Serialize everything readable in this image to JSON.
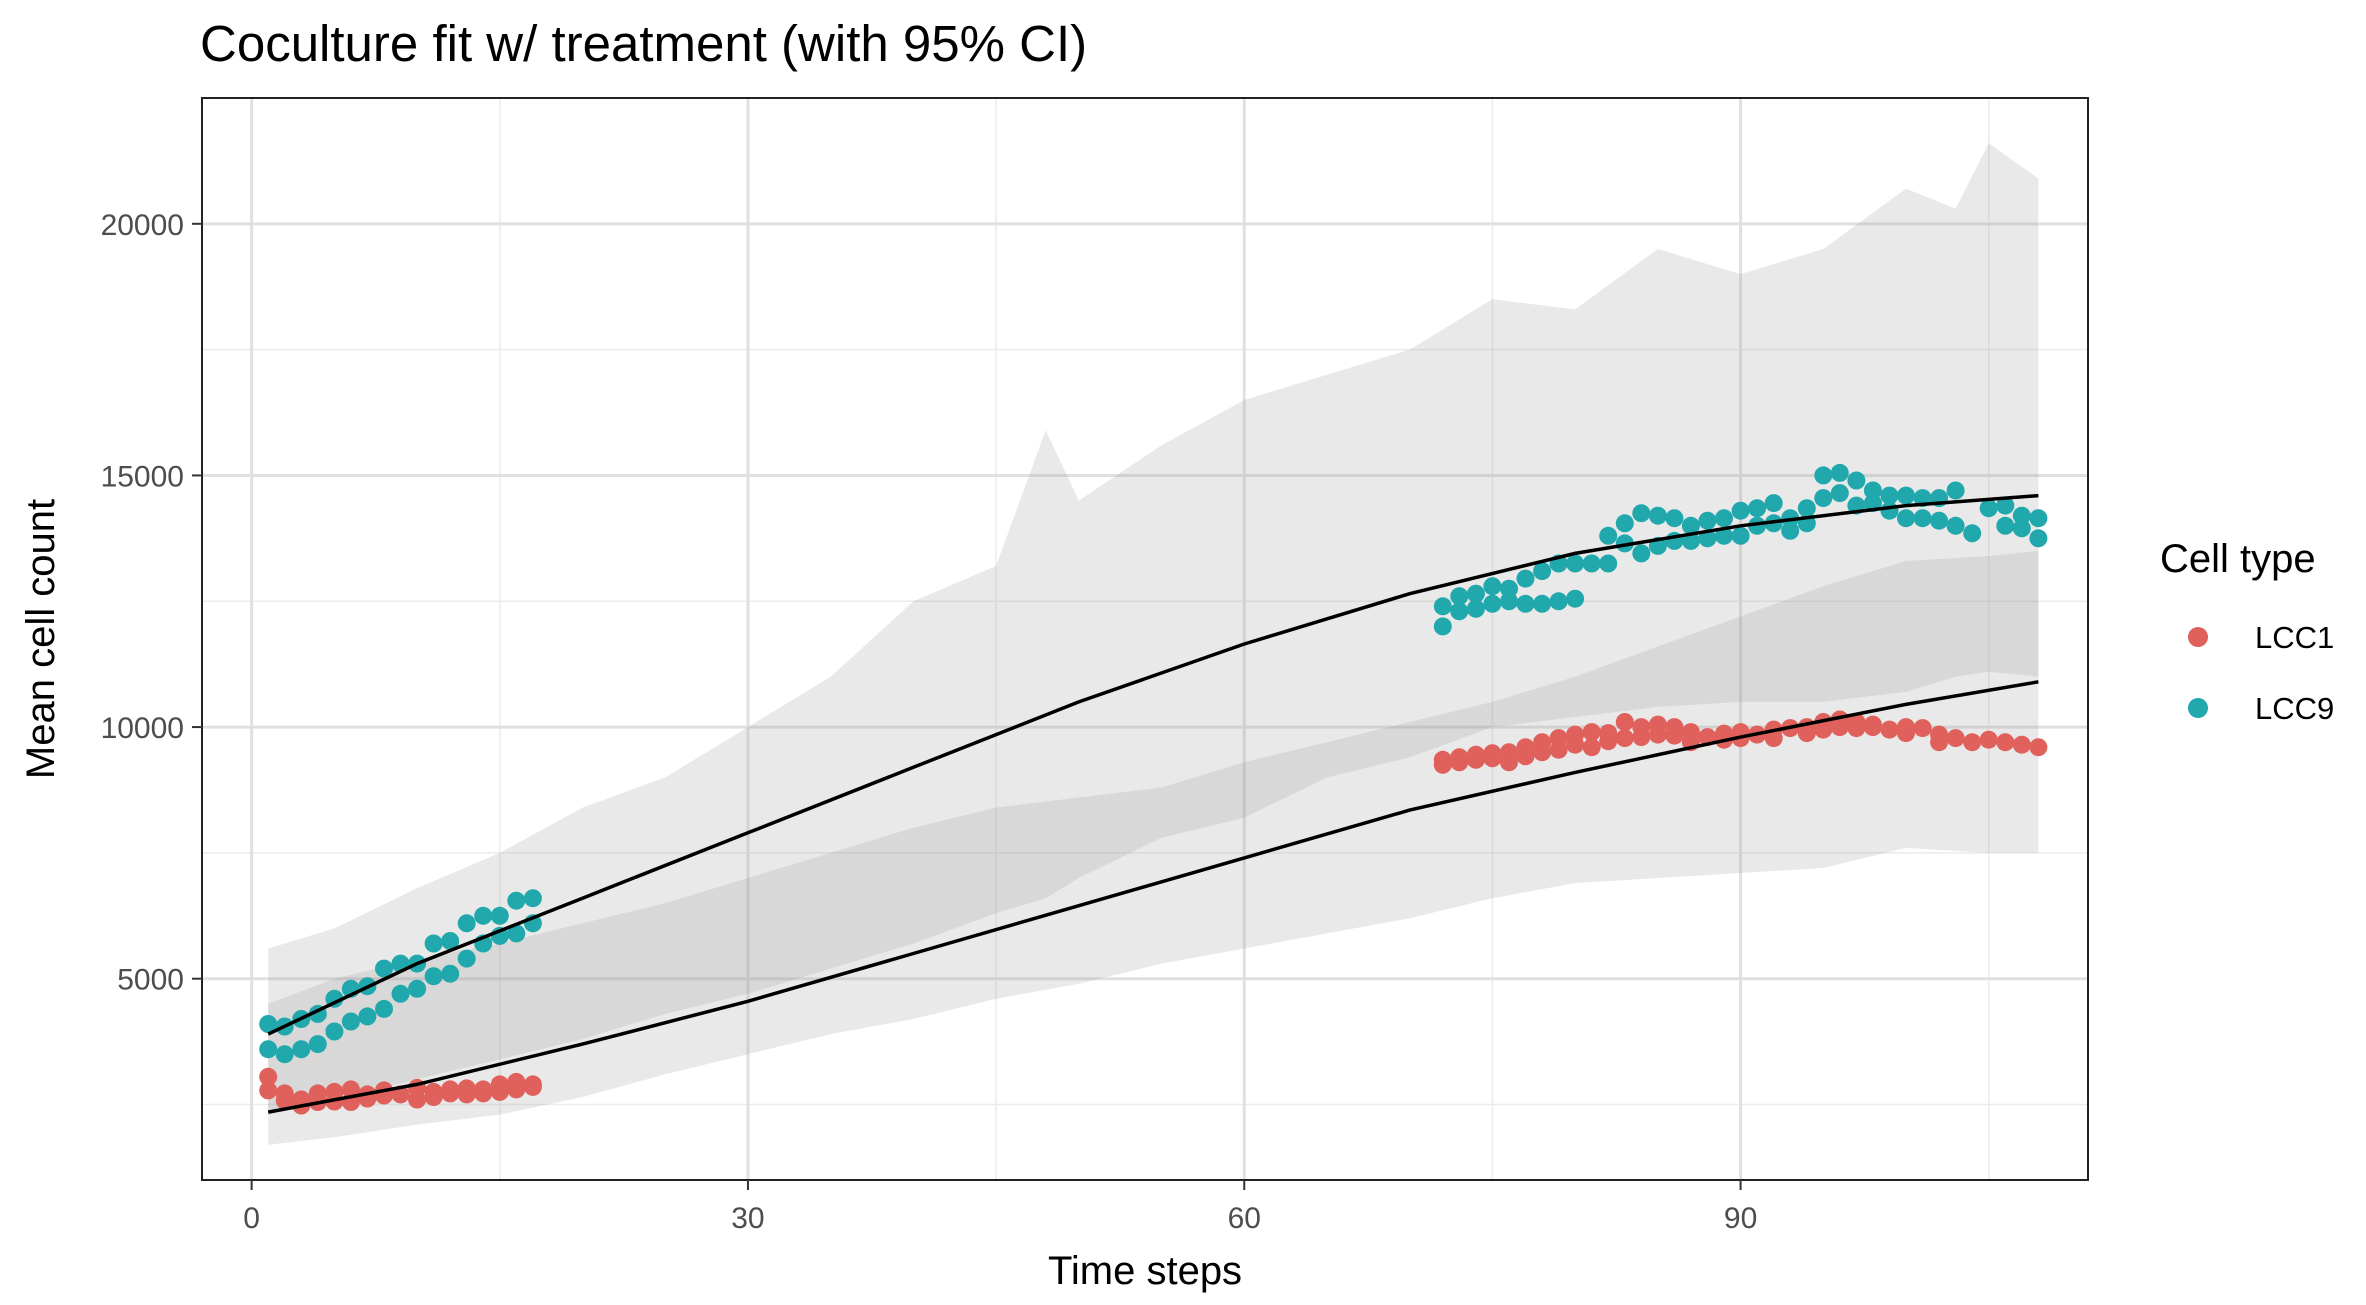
{
  "chart_data": {
    "type": "scatter",
    "title": "Coculture fit w/ treatment (with 95% CI)",
    "xlabel": "Time steps",
    "ylabel": "Mean cell count",
    "xlim": [
      -3,
      111
    ],
    "ylim": [
      1000,
      22500
    ],
    "x_ticks": [
      0,
      30,
      60,
      90
    ],
    "y_ticks": [
      5000,
      10000,
      15000,
      20000
    ],
    "x_minor": [
      15,
      45,
      75,
      105
    ],
    "y_minor": [
      2500,
      7500,
      12500,
      17500
    ],
    "grid": true,
    "legend": {
      "title": "Cell type",
      "position": "right",
      "entries": [
        {
          "label": "LCC1",
          "color": "#E0605B"
        },
        {
          "label": "LCC9",
          "color": "#20A8AC"
        }
      ]
    },
    "series": [
      {
        "name": "LCC1",
        "color": "#E0605B",
        "points": [
          [
            1,
            3050
          ],
          [
            1,
            2780
          ],
          [
            2,
            2720
          ],
          [
            2,
            2580
          ],
          [
            3,
            2600
          ],
          [
            3,
            2480
          ],
          [
            4,
            2550
          ],
          [
            4,
            2720
          ],
          [
            5,
            2750
          ],
          [
            5,
            2560
          ],
          [
            6,
            2800
          ],
          [
            6,
            2550
          ],
          [
            7,
            2700
          ],
          [
            7,
            2620
          ],
          [
            8,
            2780
          ],
          [
            8,
            2680
          ],
          [
            9,
            2700
          ],
          [
            10,
            2830
          ],
          [
            10,
            2600
          ],
          [
            11,
            2750
          ],
          [
            11,
            2650
          ],
          [
            12,
            2800
          ],
          [
            12,
            2720
          ],
          [
            13,
            2820
          ],
          [
            13,
            2700
          ],
          [
            14,
            2800
          ],
          [
            14,
            2720
          ],
          [
            15,
            2900
          ],
          [
            15,
            2750
          ],
          [
            16,
            2950
          ],
          [
            16,
            2800
          ],
          [
            17,
            2900
          ],
          [
            17,
            2850
          ],
          [
            72,
            9350
          ],
          [
            72,
            9250
          ],
          [
            73,
            9400
          ],
          [
            73,
            9300
          ],
          [
            74,
            9450
          ],
          [
            74,
            9350
          ],
          [
            75,
            9480
          ],
          [
            75,
            9380
          ],
          [
            76,
            9500
          ],
          [
            76,
            9300
          ],
          [
            77,
            9600
          ],
          [
            77,
            9420
          ],
          [
            78,
            9700
          ],
          [
            78,
            9500
          ],
          [
            79,
            9780
          ],
          [
            79,
            9550
          ],
          [
            80,
            9850
          ],
          [
            80,
            9650
          ],
          [
            81,
            9900
          ],
          [
            81,
            9600
          ],
          [
            82,
            9880
          ],
          [
            82,
            9720
          ],
          [
            83,
            10100
          ],
          [
            83,
            9780
          ],
          [
            84,
            10000
          ],
          [
            84,
            9800
          ],
          [
            85,
            10050
          ],
          [
            85,
            9850
          ],
          [
            86,
            10000
          ],
          [
            86,
            9830
          ],
          [
            87,
            9900
          ],
          [
            87,
            9700
          ],
          [
            88,
            9800
          ],
          [
            89,
            9870
          ],
          [
            89,
            9750
          ],
          [
            90,
            9900
          ],
          [
            90,
            9780
          ],
          [
            91,
            9850
          ],
          [
            92,
            9950
          ],
          [
            92,
            9780
          ],
          [
            93,
            9980
          ],
          [
            94,
            10000
          ],
          [
            94,
            9880
          ],
          [
            95,
            10100
          ],
          [
            95,
            9950
          ],
          [
            96,
            10150
          ],
          [
            96,
            10000
          ],
          [
            97,
            10100
          ],
          [
            97,
            9980
          ],
          [
            98,
            10050
          ],
          [
            98,
            10000
          ],
          [
            99,
            9950
          ],
          [
            100,
            10000
          ],
          [
            100,
            9880
          ],
          [
            101,
            9980
          ],
          [
            102,
            9850
          ],
          [
            102,
            9700
          ],
          [
            103,
            9780
          ],
          [
            104,
            9700
          ],
          [
            105,
            9750
          ],
          [
            106,
            9700
          ],
          [
            107,
            9650
          ],
          [
            108,
            9600
          ]
        ]
      },
      {
        "name": "LCC9",
        "color": "#20A8AC",
        "points": [
          [
            1,
            4100
          ],
          [
            1,
            3600
          ],
          [
            2,
            4050
          ],
          [
            2,
            3500
          ],
          [
            3,
            4200
          ],
          [
            3,
            3600
          ],
          [
            4,
            4300
          ],
          [
            4,
            3700
          ],
          [
            5,
            4600
          ],
          [
            5,
            3950
          ],
          [
            6,
            4800
          ],
          [
            6,
            4150
          ],
          [
            7,
            4850
          ],
          [
            7,
            4250
          ],
          [
            8,
            5200
          ],
          [
            8,
            4400
          ],
          [
            9,
            5300
          ],
          [
            9,
            4700
          ],
          [
            10,
            5300
          ],
          [
            10,
            4800
          ],
          [
            11,
            5700
          ],
          [
            11,
            5050
          ],
          [
            12,
            5750
          ],
          [
            12,
            5100
          ],
          [
            13,
            6100
          ],
          [
            13,
            5400
          ],
          [
            14,
            6250
          ],
          [
            14,
            5700
          ],
          [
            15,
            6250
          ],
          [
            15,
            5850
          ],
          [
            16,
            6550
          ],
          [
            16,
            5900
          ],
          [
            17,
            6600
          ],
          [
            17,
            6100
          ],
          [
            72,
            12400
          ],
          [
            72,
            12000
          ],
          [
            73,
            12600
          ],
          [
            73,
            12300
          ],
          [
            74,
            12650
          ],
          [
            74,
            12350
          ],
          [
            75,
            12800
          ],
          [
            75,
            12450
          ],
          [
            76,
            12750
          ],
          [
            76,
            12500
          ],
          [
            77,
            12950
          ],
          [
            77,
            12450
          ],
          [
            78,
            13100
          ],
          [
            78,
            12450
          ],
          [
            79,
            13250
          ],
          [
            79,
            12500
          ],
          [
            80,
            13250
          ],
          [
            80,
            12550
          ],
          [
            81,
            13250
          ],
          [
            82,
            13800
          ],
          [
            82,
            13250
          ],
          [
            83,
            14050
          ],
          [
            83,
            13650
          ],
          [
            84,
            14250
          ],
          [
            84,
            13450
          ],
          [
            85,
            14200
          ],
          [
            85,
            13600
          ],
          [
            86,
            14150
          ],
          [
            86,
            13700
          ],
          [
            87,
            14000
          ],
          [
            87,
            13700
          ],
          [
            88,
            14100
          ],
          [
            88,
            13750
          ],
          [
            89,
            14150
          ],
          [
            89,
            13800
          ],
          [
            90,
            14300
          ],
          [
            90,
            13800
          ],
          [
            91,
            14350
          ],
          [
            91,
            14000
          ],
          [
            92,
            14450
          ],
          [
            92,
            14050
          ],
          [
            93,
            14150
          ],
          [
            93,
            13900
          ],
          [
            94,
            14350
          ],
          [
            94,
            14050
          ],
          [
            95,
            15000
          ],
          [
            95,
            14550
          ],
          [
            96,
            15050
          ],
          [
            96,
            14650
          ],
          [
            97,
            14900
          ],
          [
            97,
            14400
          ],
          [
            98,
            14700
          ],
          [
            98,
            14450
          ],
          [
            99,
            14600
          ],
          [
            99,
            14300
          ],
          [
            100,
            14600
          ],
          [
            100,
            14150
          ],
          [
            101,
            14550
          ],
          [
            101,
            14150
          ],
          [
            102,
            14550
          ],
          [
            102,
            14100
          ],
          [
            103,
            14700
          ],
          [
            103,
            14000
          ],
          [
            104,
            13850
          ],
          [
            105,
            14350
          ],
          [
            106,
            14400
          ],
          [
            106,
            14000
          ],
          [
            107,
            14200
          ],
          [
            107,
            13950
          ],
          [
            108,
            14150
          ],
          [
            108,
            13750
          ]
        ]
      }
    ],
    "fit_lines": [
      {
        "name": "LCC1 fit",
        "x": [
          1,
          10,
          20,
          30,
          40,
          50,
          60,
          70,
          80,
          90,
          100,
          108
        ],
        "y": [
          2350,
          2900,
          3700,
          4550,
          5500,
          6450,
          7400,
          8350,
          9100,
          9800,
          10450,
          10900
        ]
      },
      {
        "name": "LCC9 fit",
        "x": [
          1,
          10,
          20,
          30,
          40,
          50,
          60,
          70,
          80,
          90,
          100,
          108
        ],
        "y": [
          3900,
          5300,
          6600,
          7900,
          9200,
          10500,
          11650,
          12650,
          13450,
          14000,
          14400,
          14600
        ]
      }
    ],
    "ci_bands": [
      {
        "name": "upper band",
        "x": [
          1,
          5,
          10,
          15,
          20,
          25,
          30,
          35,
          40,
          45,
          48,
          50,
          55,
          60,
          65,
          70,
          75,
          80,
          85,
          90,
          95,
          100,
          103,
          105,
          108
        ],
        "upper": [
          5600,
          6000,
          6800,
          7500,
          8400,
          9000,
          10000,
          11000,
          12500,
          13200,
          15900,
          14500,
          15600,
          16500,
          17000,
          17500,
          18500,
          18300,
          19500,
          19000,
          19500,
          20700,
          20300,
          21600,
          20900
        ],
        "lower": [
          2300,
          2600,
          3000,
          3400,
          3800,
          4300,
          4700,
          5200,
          5700,
          6300,
          6600,
          7000,
          7800,
          8200,
          9000,
          9400,
          10000,
          10200,
          10400,
          10500,
          10500,
          10700,
          11000,
          11100,
          11000
        ]
      },
      {
        "name": "lower band",
        "x": [
          1,
          5,
          10,
          15,
          20,
          25,
          30,
          35,
          40,
          45,
          50,
          55,
          60,
          65,
          70,
          75,
          80,
          85,
          90,
          95,
          100,
          105,
          108
        ],
        "upper": [
          4500,
          5000,
          5400,
          5700,
          6100,
          6500,
          7000,
          7500,
          8000,
          8400,
          8600,
          8800,
          9300,
          9700,
          10100,
          10500,
          11000,
          11600,
          12200,
          12800,
          13300,
          13400,
          13500
        ],
        "lower": [
          1700,
          1850,
          2100,
          2300,
          2650,
          3100,
          3500,
          3900,
          4200,
          4600,
          4900,
          5300,
          5600,
          5900,
          6200,
          6600,
          6900,
          7000,
          7100,
          7200,
          7600,
          7500,
          7500
        ]
      }
    ]
  }
}
